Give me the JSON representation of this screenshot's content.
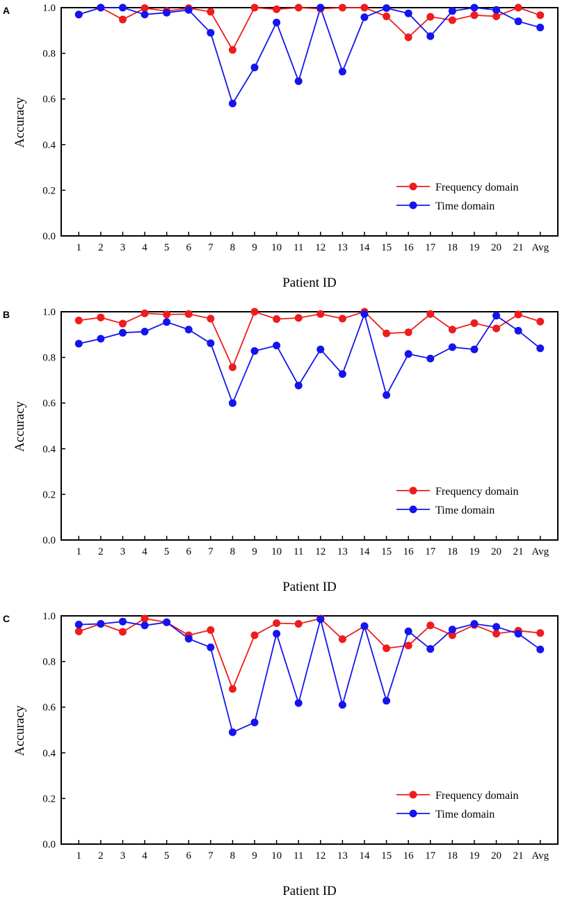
{
  "chart_data": [
    {
      "panel": "A",
      "type": "line",
      "xlabel": "Patient ID",
      "ylabel": "Accuracy",
      "ylim": [
        0.0,
        1.0
      ],
      "yticks": [
        "0.0",
        "0.2",
        "0.4",
        "0.6",
        "0.8",
        "1.0"
      ],
      "categories": [
        "1",
        "2",
        "3",
        "4",
        "5",
        "6",
        "7",
        "8",
        "9",
        "10",
        "11",
        "12",
        "13",
        "14",
        "15",
        "16",
        "17",
        "18",
        "19",
        "20",
        "21",
        "Avg"
      ],
      "legend_position": "bottom-right",
      "series": [
        {
          "name": "Frequency domain",
          "color": "#ee1c1c",
          "values": [
            0.97,
            1.0,
            0.948,
            0.998,
            0.985,
            0.998,
            0.982,
            0.815,
            1.0,
            0.993,
            1.0,
            0.995,
            1.0,
            1.0,
            0.962,
            0.87,
            0.96,
            0.945,
            0.967,
            0.962,
            1.0,
            0.967
          ]
        },
        {
          "name": "Time domain",
          "color": "#1414ee",
          "values": [
            0.97,
            1.0,
            1.0,
            0.97,
            0.978,
            0.99,
            0.89,
            0.58,
            0.738,
            0.935,
            0.678,
            1.0,
            0.72,
            0.958,
            0.998,
            0.975,
            0.875,
            0.985,
            1.0,
            0.99,
            0.94,
            0.913
          ]
        }
      ]
    },
    {
      "panel": "B",
      "type": "line",
      "xlabel": "Patient ID",
      "ylabel": "Accuracy",
      "ylim": [
        0.0,
        1.0
      ],
      "yticks": [
        "0.0",
        "0.2",
        "0.4",
        "0.6",
        "0.8",
        "1.0"
      ],
      "categories": [
        "1",
        "2",
        "3",
        "4",
        "5",
        "6",
        "7",
        "8",
        "9",
        "10",
        "11",
        "12",
        "13",
        "14",
        "15",
        "16",
        "17",
        "18",
        "19",
        "20",
        "21",
        "Avg"
      ],
      "legend_position": "bottom-right",
      "series": [
        {
          "name": "Frequency domain",
          "color": "#ee1c1c",
          "values": [
            0.962,
            0.975,
            0.948,
            0.993,
            0.988,
            0.99,
            0.97,
            0.757,
            1.0,
            0.968,
            0.973,
            0.99,
            0.97,
            1.0,
            0.905,
            0.91,
            0.99,
            0.922,
            0.95,
            0.927,
            0.988,
            0.957
          ]
        },
        {
          "name": "Time domain",
          "color": "#1414ee",
          "values": [
            0.86,
            0.882,
            0.908,
            0.913,
            0.955,
            0.922,
            0.862,
            0.6,
            0.828,
            0.852,
            0.677,
            0.835,
            0.727,
            0.99,
            0.635,
            0.815,
            0.795,
            0.845,
            0.835,
            0.983,
            0.917,
            0.84
          ]
        }
      ]
    },
    {
      "panel": "C",
      "type": "line",
      "xlabel": "Patient ID",
      "ylabel": "Accuracy",
      "ylim": [
        0.0,
        1.0
      ],
      "yticks": [
        "0.0",
        "0.2",
        "0.4",
        "0.6",
        "0.8",
        "1.0"
      ],
      "categories": [
        "1",
        "2",
        "3",
        "4",
        "5",
        "6",
        "7",
        "8",
        "9",
        "10",
        "11",
        "12",
        "13",
        "14",
        "15",
        "16",
        "17",
        "18",
        "19",
        "20",
        "21",
        "Avg"
      ],
      "legend_position": "bottom-right",
      "series": [
        {
          "name": "Frequency domain",
          "color": "#ee1c1c",
          "values": [
            0.932,
            0.965,
            0.93,
            0.988,
            0.972,
            0.915,
            0.938,
            0.68,
            0.915,
            0.968,
            0.965,
            0.988,
            0.898,
            0.955,
            0.858,
            0.87,
            0.958,
            0.915,
            0.96,
            0.922,
            0.935,
            0.925
          ]
        },
        {
          "name": "Time domain",
          "color": "#1414ee",
          "values": [
            0.962,
            0.965,
            0.975,
            0.958,
            0.972,
            0.9,
            0.862,
            0.49,
            0.533,
            0.922,
            0.618,
            0.985,
            0.61,
            0.955,
            0.628,
            0.932,
            0.855,
            0.94,
            0.965,
            0.952,
            0.922,
            0.853
          ]
        }
      ]
    }
  ]
}
